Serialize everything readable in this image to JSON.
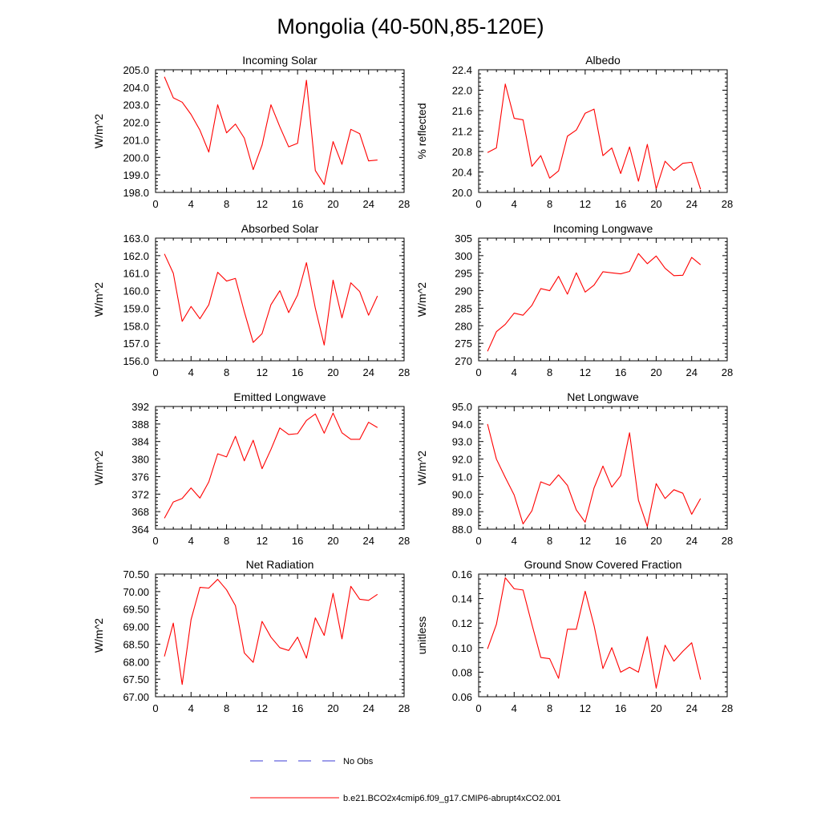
{
  "figure": {
    "title": "Mongolia (40-50N,85-120E)",
    "line_color": "#ff0000",
    "obs_color": "#3b3bd6",
    "legend": {
      "obs_label": "No Obs",
      "model_label": "b.e21.BCO2x4cmip6.f09_g17.CMIP6-abrupt4xCO2.001"
    }
  },
  "chart_data": [
    {
      "type": "line",
      "title": "Incoming Solar",
      "xlabel": "",
      "ylabel": "W/m^2",
      "xlim": [
        0,
        28
      ],
      "xticks": [
        0,
        4,
        8,
        12,
        16,
        20,
        24,
        28
      ],
      "ylim": [
        198.0,
        205.0
      ],
      "yticks": [
        198.0,
        199.0,
        200.0,
        201.0,
        202.0,
        203.0,
        204.0,
        205.0
      ],
      "yticklabels": [
        "198.0",
        "199.0",
        "200.0",
        "201.0",
        "202.0",
        "203.0",
        "204.0",
        "205.0"
      ],
      "x": [
        1,
        2,
        3,
        4,
        5,
        6,
        7,
        8,
        9,
        10,
        11,
        12,
        13,
        14,
        15,
        16,
        17,
        18,
        19,
        20,
        21,
        22,
        23,
        24,
        25
      ],
      "values": [
        204.6,
        203.4,
        203.15,
        202.45,
        201.55,
        200.3,
        203.0,
        201.4,
        201.9,
        201.1,
        199.3,
        200.7,
        203.0,
        201.75,
        200.6,
        200.8,
        204.4,
        199.25,
        198.45,
        200.9,
        199.6,
        201.6,
        201.35,
        199.8,
        199.85
      ]
    },
    {
      "type": "line",
      "title": "Albedo",
      "xlabel": "",
      "ylabel": "% reflected",
      "xlim": [
        0,
        28
      ],
      "xticks": [
        0,
        4,
        8,
        12,
        16,
        20,
        24,
        28
      ],
      "ylim": [
        20.0,
        22.4
      ],
      "yticks": [
        20.0,
        20.4,
        20.8,
        21.2,
        21.6,
        22.0,
        22.4
      ],
      "yticklabels": [
        "20.0",
        "20.4",
        "20.8",
        "21.2",
        "21.6",
        "22.0",
        "22.4"
      ],
      "x": [
        1,
        2,
        3,
        4,
        5,
        6,
        7,
        8,
        9,
        10,
        11,
        12,
        13,
        14,
        15,
        16,
        17,
        18,
        19,
        20,
        21,
        22,
        23,
        24,
        25
      ],
      "values": [
        20.78,
        20.87,
        22.12,
        21.45,
        21.42,
        20.51,
        20.72,
        20.28,
        20.42,
        21.1,
        21.22,
        21.55,
        21.63,
        20.72,
        20.87,
        20.37,
        20.89,
        20.22,
        20.94,
        20.07,
        20.61,
        20.43,
        20.57,
        20.59,
        20.06
      ]
    },
    {
      "type": "line",
      "title": "Absorbed Solar",
      "xlabel": "",
      "ylabel": "W/m^2",
      "xlim": [
        0,
        28
      ],
      "xticks": [
        0,
        4,
        8,
        12,
        16,
        20,
        24,
        28
      ],
      "ylim": [
        156.0,
        163.0
      ],
      "yticks": [
        156.0,
        157.0,
        158.0,
        159.0,
        160.0,
        161.0,
        162.0,
        163.0
      ],
      "yticklabels": [
        "156.0",
        "157.0",
        "158.0",
        "159.0",
        "160.0",
        "161.0",
        "162.0",
        "163.0"
      ],
      "x": [
        1,
        2,
        3,
        4,
        5,
        6,
        7,
        8,
        9,
        10,
        11,
        12,
        13,
        14,
        15,
        16,
        17,
        18,
        19,
        20,
        21,
        22,
        23,
        24,
        25
      ],
      "values": [
        162.1,
        161.0,
        158.25,
        159.1,
        158.4,
        159.2,
        161.05,
        160.55,
        160.7,
        158.8,
        157.05,
        157.55,
        159.2,
        160.0,
        158.75,
        159.75,
        161.6,
        159.0,
        156.9,
        160.6,
        158.45,
        160.45,
        159.95,
        158.6,
        159.7
      ]
    },
    {
      "type": "line",
      "title": "Incoming Longwave",
      "xlabel": "",
      "ylabel": "W/m^2",
      "xlim": [
        0,
        28
      ],
      "xticks": [
        0,
        4,
        8,
        12,
        16,
        20,
        24,
        28
      ],
      "ylim": [
        270,
        305
      ],
      "yticks": [
        270,
        275,
        280,
        285,
        290,
        295,
        300,
        305
      ],
      "yticklabels": [
        "270",
        "275",
        "280",
        "285",
        "290",
        "295",
        "300",
        "305"
      ],
      "x": [
        1,
        2,
        3,
        4,
        5,
        6,
        7,
        8,
        9,
        10,
        11,
        12,
        13,
        14,
        15,
        16,
        17,
        18,
        19,
        20,
        21,
        22,
        23,
        24,
        25
      ],
      "values": [
        272.7,
        278.3,
        280.4,
        283.6,
        283.0,
        285.8,
        290.6,
        290.0,
        294.1,
        289.0,
        295.1,
        289.6,
        291.6,
        295.4,
        295.1,
        294.8,
        295.5,
        300.6,
        297.7,
        299.9,
        296.4,
        294.3,
        294.4,
        299.5,
        297.4
      ]
    },
    {
      "type": "line",
      "title": "Emitted Longwave",
      "xlabel": "",
      "ylabel": "W/m^2",
      "xlim": [
        0,
        28
      ],
      "xticks": [
        0,
        4,
        8,
        12,
        16,
        20,
        24,
        28
      ],
      "ylim": [
        364,
        392
      ],
      "yticks": [
        364,
        368,
        372,
        376,
        380,
        384,
        388,
        392
      ],
      "yticklabels": [
        "364",
        "368",
        "372",
        "376",
        "380",
        "384",
        "388",
        "392"
      ],
      "x": [
        1,
        2,
        3,
        4,
        5,
        6,
        7,
        8,
        9,
        10,
        11,
        12,
        13,
        14,
        15,
        16,
        17,
        18,
        19,
        20,
        21,
        22,
        23,
        24,
        25
      ],
      "values": [
        366.5,
        370.2,
        371.0,
        373.4,
        371.1,
        374.8,
        381.2,
        380.5,
        385.2,
        379.6,
        384.3,
        377.8,
        382.2,
        387.1,
        385.6,
        385.8,
        388.8,
        390.3,
        385.9,
        390.5,
        386.0,
        384.5,
        384.5,
        388.4,
        387.2
      ]
    },
    {
      "type": "line",
      "title": "Net Longwave",
      "xlabel": "",
      "ylabel": "W/m^2",
      "xlim": [
        0,
        28
      ],
      "xticks": [
        0,
        4,
        8,
        12,
        16,
        20,
        24,
        28
      ],
      "ylim": [
        88.0,
        95.0
      ],
      "yticks": [
        88.0,
        89.0,
        90.0,
        91.0,
        92.0,
        93.0,
        94.0,
        95.0
      ],
      "yticklabels": [
        "88.0",
        "89.0",
        "90.0",
        "91.0",
        "92.0",
        "93.0",
        "94.0",
        "95.0"
      ],
      "x": [
        1,
        2,
        3,
        4,
        5,
        6,
        7,
        8,
        9,
        10,
        11,
        12,
        13,
        14,
        15,
        16,
        17,
        18,
        19,
        20,
        21,
        22,
        23,
        24,
        25
      ],
      "values": [
        94.0,
        92.0,
        90.95,
        89.95,
        88.3,
        89.05,
        90.7,
        90.5,
        91.1,
        90.5,
        89.1,
        88.4,
        90.35,
        91.6,
        90.4,
        91.05,
        93.5,
        89.65,
        88.15,
        90.6,
        89.75,
        90.25,
        90.05,
        88.85,
        89.75
      ]
    },
    {
      "type": "line",
      "title": "Net Radiation",
      "xlabel": "",
      "ylabel": "W/m^2",
      "xlim": [
        0,
        28
      ],
      "xticks": [
        0,
        4,
        8,
        12,
        16,
        20,
        24,
        28
      ],
      "ylim": [
        67.0,
        70.5
      ],
      "yticks": [
        67.0,
        67.5,
        68.0,
        68.5,
        69.0,
        69.5,
        70.0,
        70.5
      ],
      "yticklabels": [
        "67.00",
        "67.50",
        "68.00",
        "68.50",
        "69.00",
        "69.50",
        "70.00",
        "70.50"
      ],
      "x": [
        1,
        2,
        3,
        4,
        5,
        6,
        7,
        8,
        9,
        10,
        11,
        12,
        13,
        14,
        15,
        16,
        17,
        18,
        19,
        20,
        21,
        22,
        23,
        24,
        25
      ],
      "values": [
        68.15,
        69.1,
        67.35,
        69.2,
        70.12,
        70.1,
        70.35,
        70.05,
        69.6,
        68.25,
        67.98,
        69.15,
        68.7,
        68.4,
        68.32,
        68.7,
        68.1,
        69.25,
        68.75,
        69.95,
        68.65,
        70.15,
        69.78,
        69.75,
        69.92
      ]
    },
    {
      "type": "line",
      "title": "Ground Snow Covered Fraction",
      "xlabel": "",
      "ylabel": "unitless",
      "xlim": [
        0,
        28
      ],
      "xticks": [
        0,
        4,
        8,
        12,
        16,
        20,
        24,
        28
      ],
      "ylim": [
        0.06,
        0.16
      ],
      "yticks": [
        0.06,
        0.08,
        0.1,
        0.12,
        0.14,
        0.16
      ],
      "yticklabels": [
        "0.06",
        "0.08",
        "0.10",
        "0.12",
        "0.14",
        "0.16"
      ],
      "x": [
        1,
        2,
        3,
        4,
        5,
        6,
        7,
        8,
        9,
        10,
        11,
        12,
        13,
        14,
        15,
        16,
        17,
        18,
        19,
        20,
        21,
        22,
        23,
        24,
        25
      ],
      "values": [
        0.099,
        0.119,
        0.157,
        0.148,
        0.147,
        0.119,
        0.092,
        0.091,
        0.075,
        0.115,
        0.115,
        0.146,
        0.118,
        0.083,
        0.1,
        0.08,
        0.084,
        0.08,
        0.109,
        0.067,
        0.102,
        0.089,
        0.097,
        0.104,
        0.074
      ]
    }
  ]
}
